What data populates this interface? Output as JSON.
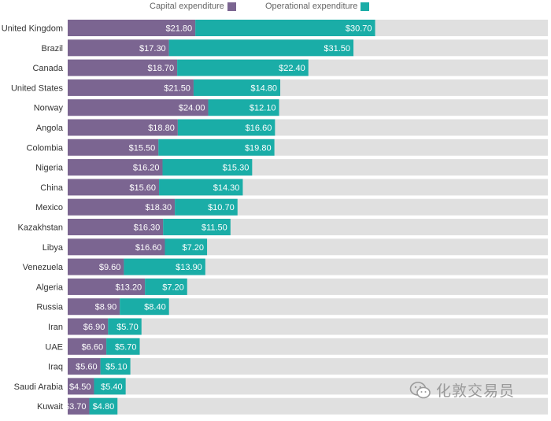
{
  "chart_data": {
    "type": "bar",
    "orientation": "horizontal",
    "stacked": true,
    "categories": [
      "United Kingdom",
      "Brazil",
      "Canada",
      "United States",
      "Norway",
      "Angola",
      "Colombia",
      "Nigeria",
      "China",
      "Mexico",
      "Kazakhstan",
      "Libya",
      "Venezuela",
      "Algeria",
      "Russia",
      "Iran",
      "UAE",
      "Iraq",
      "Saudi Arabia",
      "Kuwait"
    ],
    "series": [
      {
        "name": "Capital expenditure",
        "color": "#7b6591",
        "values": [
          21.8,
          17.3,
          18.7,
          21.5,
          24.0,
          18.8,
          15.5,
          16.2,
          15.6,
          18.3,
          16.3,
          16.6,
          9.6,
          13.2,
          8.9,
          6.9,
          6.6,
          5.6,
          4.5,
          3.7
        ],
        "labels": [
          "$21.80",
          "$17.30",
          "$18.70",
          "$21.50",
          "$24.00",
          "$18.80",
          "$15.50",
          "$16.20",
          "$15.60",
          "$18.30",
          "$16.30",
          "$16.60",
          "$9.60",
          "$13.20",
          "$8.90",
          "$6.90",
          "$6.60",
          "$5.60",
          "$4.50",
          "$3.70"
        ]
      },
      {
        "name": "Operational expenditure",
        "color": "#1aada7",
        "values": [
          30.7,
          31.5,
          22.4,
          14.8,
          12.1,
          16.6,
          19.8,
          15.3,
          14.3,
          10.7,
          11.5,
          7.2,
          13.9,
          7.2,
          8.4,
          5.7,
          5.7,
          5.1,
          5.4,
          4.8
        ],
        "labels": [
          "$30.70",
          "$31.50",
          "$22.40",
          "$14.80",
          "$12.10",
          "$16.60",
          "$19.80",
          "$15.30",
          "$14.30",
          "$10.70",
          "$11.50",
          "$7.20",
          "$13.90",
          "$7.20",
          "$8.40",
          "$5.70",
          "$5.70",
          "$5.10",
          "$5.40",
          "$4.80"
        ]
      }
    ],
    "xlim": [
      0,
      82
    ],
    "track_color": "#e0e0e0",
    "legend_position": "top-center",
    "grid": false
  },
  "watermark": {
    "text": "化敦交易员",
    "icon": "wechat-icon"
  }
}
